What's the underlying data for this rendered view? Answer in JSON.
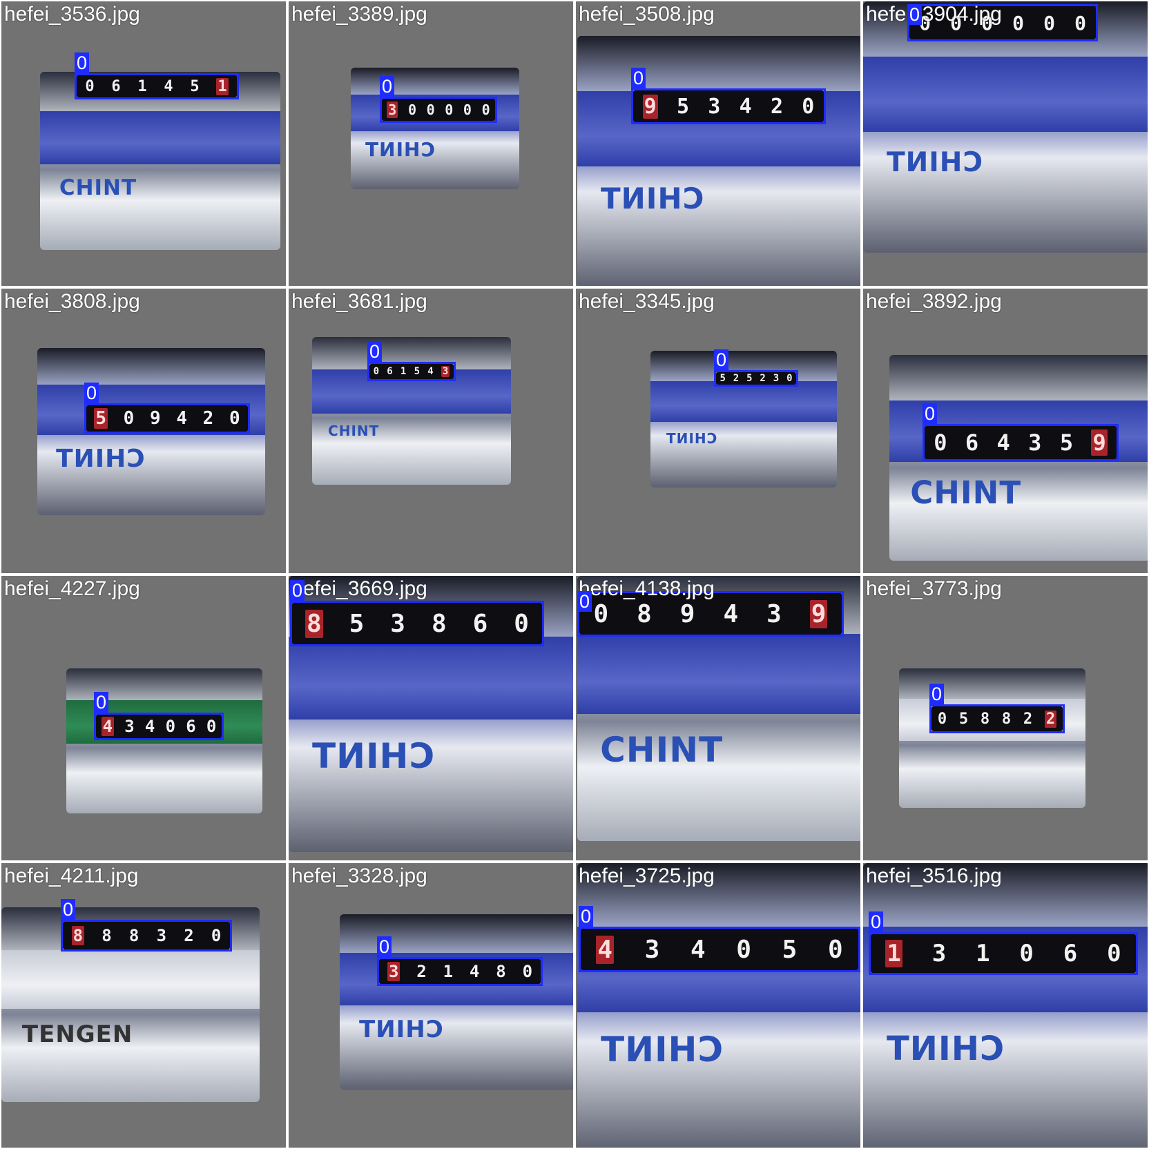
{
  "tiles": [
    {
      "filename": "hefei_3536.jpg",
      "class_label": "0",
      "reading": [
        "0",
        "6",
        "1",
        "4",
        "5",
        "1"
      ],
      "red_last": true,
      "brand": "CHINT",
      "variant": "normal"
    },
    {
      "filename": "hefei_3389.jpg",
      "class_label": "0",
      "reading": [
        "3",
        "0",
        "0",
        "0",
        "0",
        "0"
      ],
      "red_first": true,
      "brand": "CHINT",
      "variant": "flipped"
    },
    {
      "filename": "hefei_3508.jpg",
      "class_label": "0",
      "reading": [
        "9",
        "5",
        "3",
        "4",
        "2",
        "0"
      ],
      "red_first": true,
      "brand": "CHINT",
      "variant": "flipped"
    },
    {
      "filename": "hefei_3904.jpg",
      "class_label": "0",
      "reading": [
        "0",
        "0",
        "0",
        "0",
        "0",
        "0"
      ],
      "brand": "CHINT",
      "variant": "flipped"
    },
    {
      "filename": "hefei_3808.jpg",
      "class_label": "0",
      "reading": [
        "5",
        "0",
        "9",
        "4",
        "2",
        "0"
      ],
      "red_first": true,
      "brand": "CHINT",
      "variant": "flipped"
    },
    {
      "filename": "hefei_3681.jpg",
      "class_label": "0",
      "reading": [
        "0",
        "6",
        "1",
        "5",
        "4",
        "3"
      ],
      "red_last": true,
      "brand": "CHINT",
      "variant": "normal"
    },
    {
      "filename": "hefei_3345.jpg",
      "class_label": "0",
      "reading": [
        "5",
        "2",
        "5",
        "2",
        "3",
        "0"
      ],
      "brand": "CHINT",
      "variant": "flipped"
    },
    {
      "filename": "hefei_3892.jpg",
      "class_label": "0",
      "reading": [
        "0",
        "6",
        "4",
        "3",
        "5",
        "9"
      ],
      "red_last": true,
      "brand": "CHINT",
      "variant": "normal"
    },
    {
      "filename": "hefei_4227.jpg",
      "class_label": "0",
      "reading": [
        "4",
        "3",
        "4",
        "0",
        "6",
        "0"
      ],
      "red_first": true,
      "brand": "",
      "variant": "green"
    },
    {
      "filename": "hefei_3669.jpg",
      "class_label": "0",
      "reading": [
        "8",
        "5",
        "3",
        "8",
        "6",
        "0"
      ],
      "red_first": true,
      "brand": "CHINT",
      "variant": "flipped"
    },
    {
      "filename": "hefei_4138.jpg",
      "class_label": "0",
      "reading": [
        "0",
        "8",
        "9",
        "4",
        "3",
        "9"
      ],
      "red_last": true,
      "brand": "CHINT",
      "variant": "normal"
    },
    {
      "filename": "hefei_3773.jpg",
      "class_label": "0",
      "reading": [
        "0",
        "5",
        "8",
        "8",
        "2",
        "2"
      ],
      "red_last": true,
      "brand": "",
      "variant": "light"
    },
    {
      "filename": "hefei_4211.jpg",
      "class_label": "0",
      "reading": [
        "8",
        "8",
        "8",
        "3",
        "2",
        "0"
      ],
      "red_first": true,
      "brand": "TENGEN",
      "variant": "light"
    },
    {
      "filename": "hefei_3328.jpg",
      "class_label": "0",
      "reading": [
        "3",
        "2",
        "1",
        "4",
        "8",
        "0"
      ],
      "red_first": true,
      "brand": "CHINT",
      "variant": "flipped"
    },
    {
      "filename": "hefei_3725.jpg",
      "class_label": "0",
      "reading": [
        "4",
        "3",
        "4",
        "0",
        "5",
        "0"
      ],
      "red_first": true,
      "brand": "CHINT",
      "variant": "flipped"
    },
    {
      "filename": "hefei_3516.jpg",
      "class_label": "0",
      "reading": [
        "1",
        "3",
        "1",
        "0",
        "6",
        "0"
      ],
      "red_first": true,
      "brand": "CHINT",
      "variant": "flipped"
    }
  ],
  "colors": {
    "background": "#727272",
    "bbox": "#1f2cff",
    "label_text": "#ffffff",
    "red_drum": "#a8242a"
  }
}
